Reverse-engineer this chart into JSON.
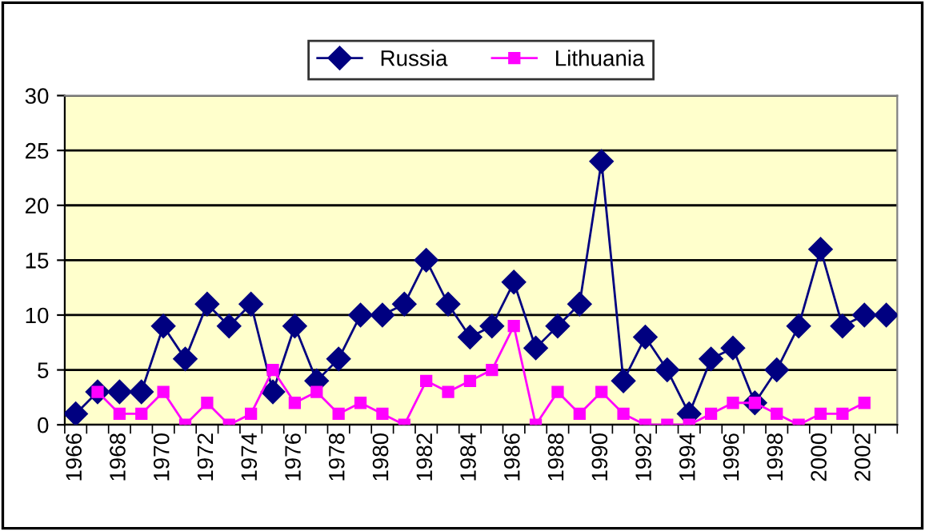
{
  "chart_data": {
    "type": "line",
    "categories": [
      "1966",
      null,
      "1968",
      null,
      "1970",
      null,
      "1972",
      null,
      "1974",
      null,
      "1976",
      null,
      "1978",
      null,
      "1980",
      null,
      "1982",
      null,
      "1984",
      null,
      "1986",
      null,
      "1988",
      null,
      "1990",
      null,
      "1992",
      null,
      "1994",
      null,
      "1996",
      null,
      "1998",
      null,
      "2000",
      null,
      "2002",
      null
    ],
    "series": [
      {
        "name": "Russia",
        "color": "#000080",
        "marker": "diamond",
        "values": [
          1,
          3,
          3,
          3,
          9,
          6,
          11,
          9,
          11,
          3,
          9,
          4,
          6,
          10,
          10,
          11,
          15,
          11,
          8,
          9,
          13,
          7,
          9,
          11,
          24,
          4,
          8,
          5,
          1,
          6,
          7,
          2,
          5,
          9,
          16,
          9,
          10,
          10
        ]
      },
      {
        "name": "Lithuania",
        "color": "#ff00ff",
        "marker": "square",
        "values": [
          null,
          3,
          1,
          1,
          3,
          0,
          2,
          0,
          1,
          5,
          2,
          3,
          1,
          2,
          1,
          0,
          4,
          3,
          4,
          5,
          9,
          0,
          3,
          1,
          3,
          1,
          0,
          0,
          0,
          1,
          2,
          2,
          1,
          0,
          1,
          1,
          2,
          null
        ]
      }
    ],
    "ylim": [
      0,
      30
    ],
    "yticks": [
      0,
      5,
      10,
      15,
      20,
      25,
      30
    ],
    "grid": "y",
    "legend": "top",
    "line_style": "solid"
  }
}
